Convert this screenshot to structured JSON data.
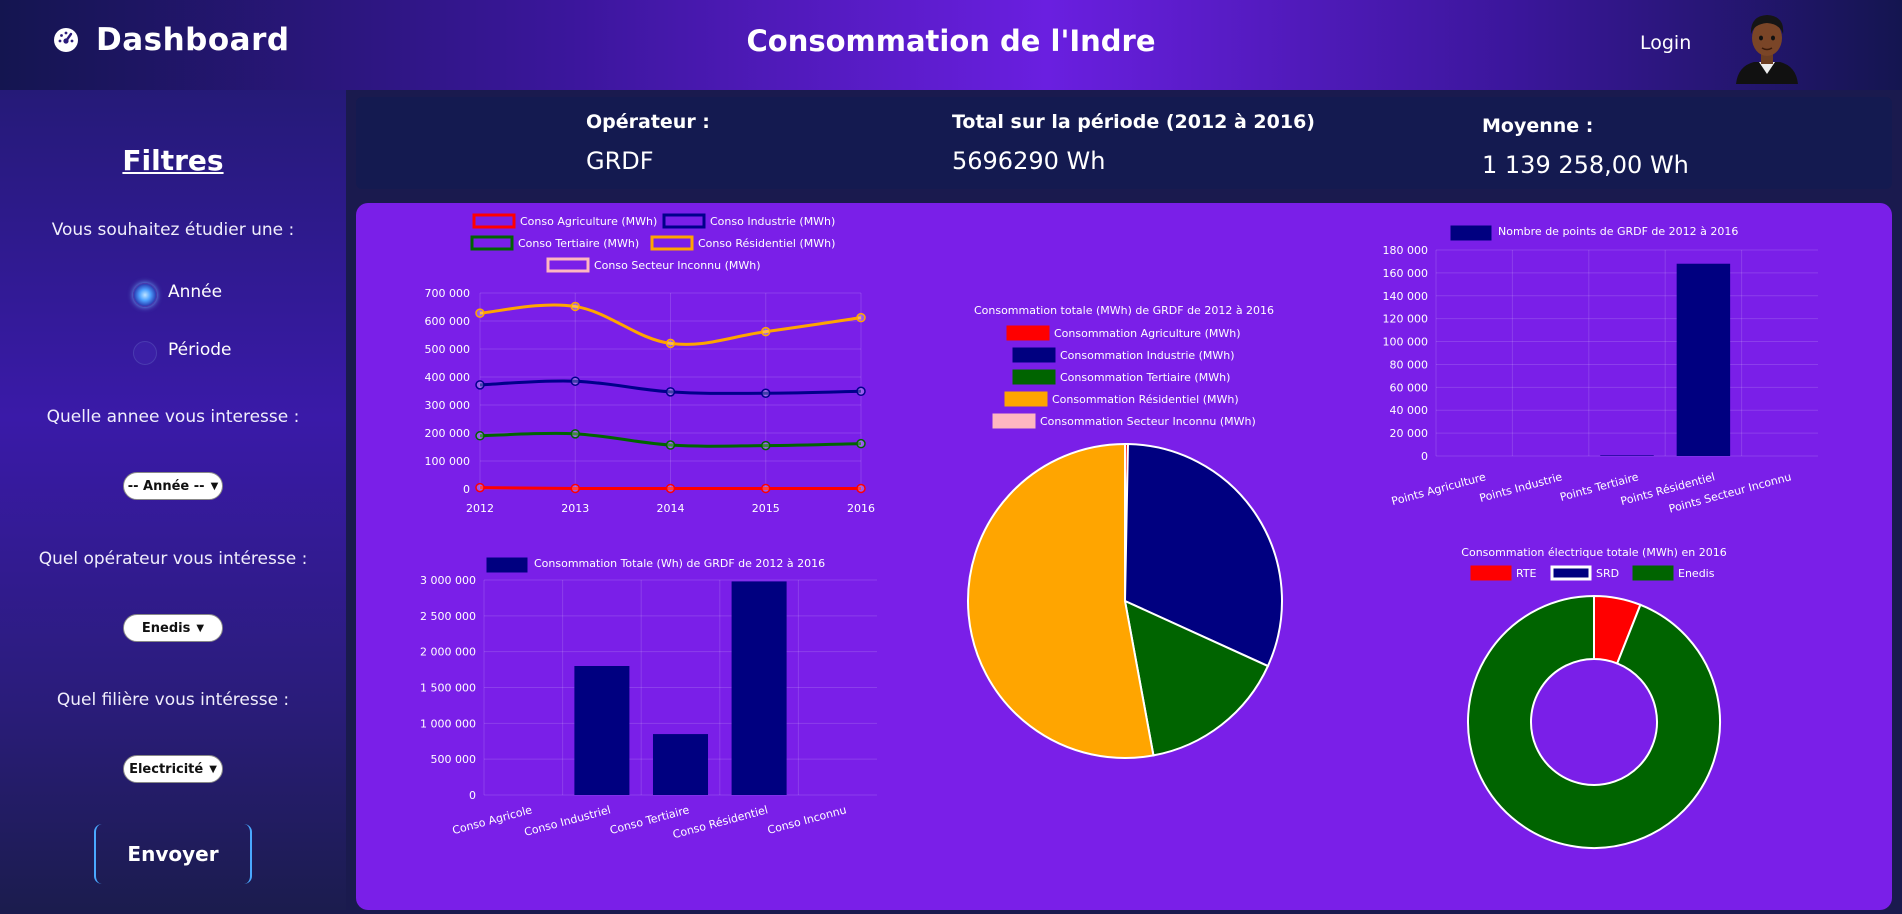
{
  "header": {
    "brand": "Dashboard",
    "title": "Consommation de l'Indre",
    "login": "Login"
  },
  "sidebar": {
    "title": "Filtres",
    "q_study": "Vous souhaitez étudier une :",
    "radio_year": "Année",
    "radio_period": "Période",
    "radio_selected": "Année",
    "q_year": "Quelle annee vous interesse :",
    "year_select": "-- Année --",
    "q_operator": "Quel opérateur vous intéresse :",
    "operator_select": "Enedis",
    "q_sector": "Quel filière vous intéresse :",
    "sector_select": "Electricité",
    "send": "Envoyer"
  },
  "stats": {
    "operator_label": "Opérateur :",
    "operator_value": "GRDF",
    "total_label": "Total sur la période (2012 à 2016)",
    "total_value": "5696290 Wh",
    "mean_label": "Moyenne :",
    "mean_value": "1 139 258,00 Wh"
  },
  "icons": {
    "brand": "dashboard-gauge-icon",
    "avatar": "user-avatar-icon"
  },
  "chart_data": [
    {
      "type": "line",
      "x": [
        "2012",
        "2013",
        "2014",
        "2015",
        "2016"
      ],
      "series": [
        {
          "name": "Conso Agriculture (MWh)",
          "color": "#ff0000",
          "values": [
            5000,
            2000,
            2000,
            2000,
            2000
          ]
        },
        {
          "name": "Conso Industrie (MWh)",
          "color": "#00008b",
          "values": [
            372000,
            385000,
            347000,
            342000,
            349000
          ]
        },
        {
          "name": "Conso Tertiaire  (MWh)",
          "color": "#006400",
          "values": [
            190000,
            197000,
            157000,
            155000,
            162000
          ]
        },
        {
          "name": "Conso Résidentiel  (MWh)",
          "color": "#ffa500",
          "values": [
            628000,
            652000,
            520000,
            562000,
            612000
          ]
        },
        {
          "name": "Conso Secteur Inconnu (MWh)",
          "color": "#ffb6c1",
          "values": [
            0,
            0,
            0,
            0,
            0
          ]
        }
      ],
      "yticks": [
        "0",
        "100 000",
        "200 000",
        "300 000",
        "400 000",
        "500 000",
        "600 000",
        "700 000"
      ],
      "ylim": [
        0,
        700000
      ]
    },
    {
      "type": "bar",
      "legend": "Consommation Totale (Wh) de GRDF de 2012 à 2016",
      "color": "#000080",
      "categories": [
        "Conso Agricole",
        "Conso Industriel",
        "Conso Tertiaire",
        "Conso Résidentiel",
        "Conso Inconnu"
      ],
      "values": [
        0,
        1800000,
        850000,
        2980000,
        0
      ],
      "yticks": [
        "0",
        "500 000",
        "1 000 000",
        "1 500 000",
        "2 000 000",
        "2 500 000",
        "3 000 000"
      ],
      "ylim": [
        0,
        3000000
      ]
    },
    {
      "type": "pie",
      "title": "Consommation totale (MWh) de GRDF de 2012 à 2016",
      "labels": [
        "Consommation Agriculture (MWh)",
        "Consommation Industrie (MWh)",
        "Consommation Tertiaire  (MWh)",
        "Consommation Résidentiel  (MWh)",
        "Consommation Secteur Inconnu (MWh)"
      ],
      "colors": [
        "#ff0000",
        "#000080",
        "#006400",
        "#ffa500",
        "#ffb6c1"
      ],
      "values": [
        0.3,
        31.5,
        15.3,
        52.9,
        0
      ]
    },
    {
      "type": "bar",
      "legend": "Nombre de points de GRDF  de 2012 à 2016",
      "color": "#000080",
      "categories": [
        "Points Agriculture",
        "Points Industrie",
        "Points Tertiaire",
        "Points Résidentiel",
        "Points Secteur Inconnu"
      ],
      "values": [
        0,
        0,
        500,
        168000,
        0
      ],
      "yticks": [
        "0",
        "20 000",
        "40 000",
        "60 000",
        "80 000",
        "100 000",
        "120 000",
        "140 000",
        "160 000",
        "180 000"
      ],
      "ylim": [
        0,
        180000
      ]
    },
    {
      "type": "pie",
      "subtype": "doughnut",
      "title": "Consommation électrique totale (MWh)  en 2016",
      "labels": [
        "RTE",
        "SRD",
        "Enedis"
      ],
      "colors": [
        "#ff0000",
        "#000080",
        "#006400"
      ],
      "values": [
        6,
        0,
        94
      ]
    }
  ]
}
